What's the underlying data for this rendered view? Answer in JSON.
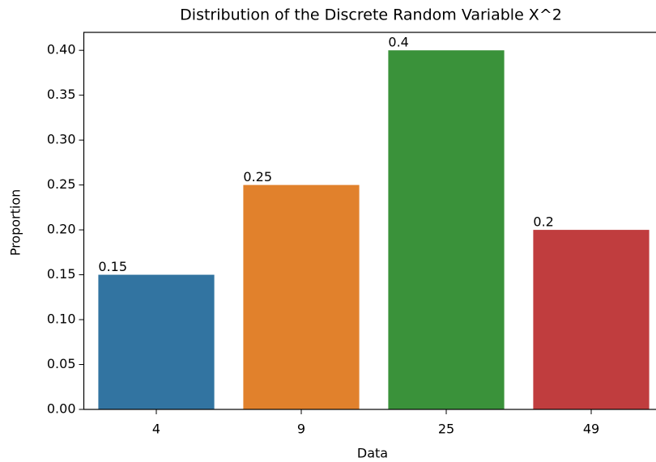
{
  "chart_data": {
    "type": "bar",
    "title": "Distribution of the Discrete Random Variable X^2",
    "x_label": "Data",
    "y_label": "Proportion",
    "categories": [
      "4",
      "9",
      "25",
      "49"
    ],
    "values": [
      0.15,
      0.25,
      0.4,
      0.2
    ],
    "colors": [
      "#3274a1",
      "#e1812c",
      "#3a923a",
      "#c03d3e"
    ],
    "ylim": [
      0,
      0.42
    ],
    "yticks": [
      {
        "value": 0,
        "label": "0.00"
      },
      {
        "value": 0.05,
        "label": "0.05"
      },
      {
        "value": 0.1,
        "label": "0.10"
      },
      {
        "value": 0.15,
        "label": "0.15"
      },
      {
        "value": 0.2,
        "label": "0.20"
      },
      {
        "value": 0.25,
        "label": "0.25"
      },
      {
        "value": 0.3,
        "label": "0.30"
      },
      {
        "value": 0.35,
        "label": "0.35"
      },
      {
        "value": 0.4,
        "label": "0.40"
      }
    ]
  }
}
